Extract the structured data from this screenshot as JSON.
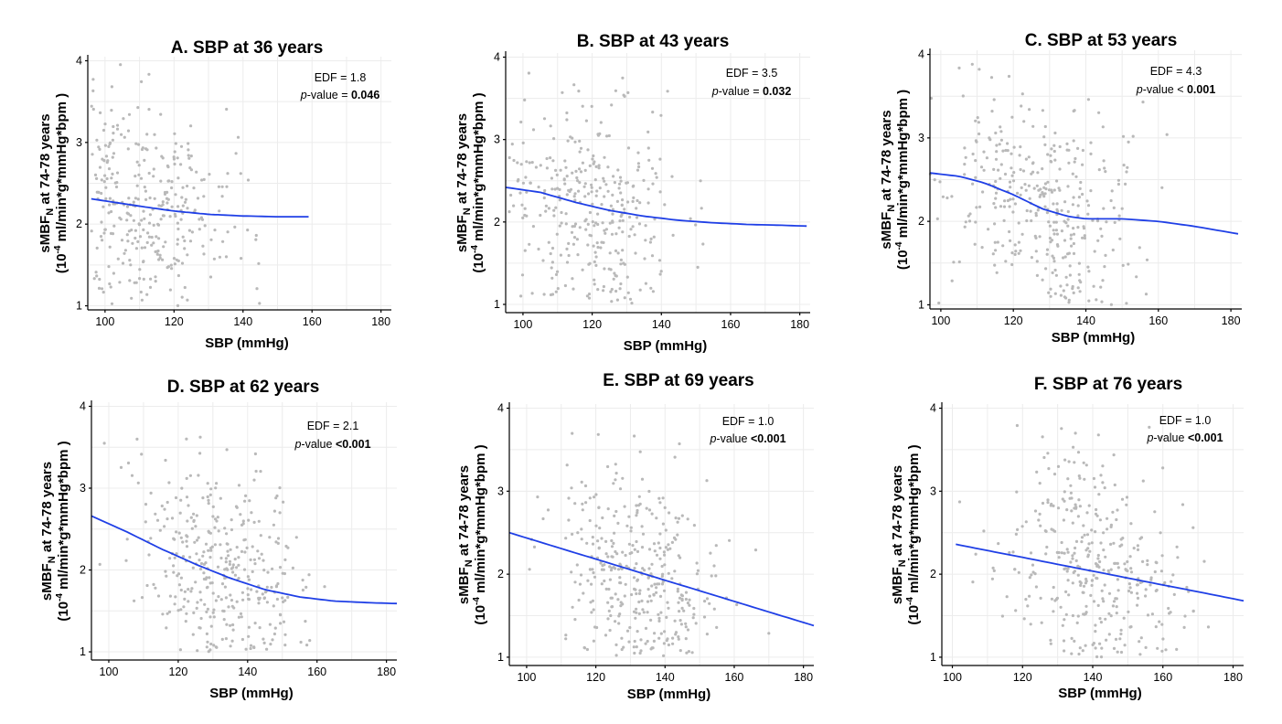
{
  "chart_data": [
    {
      "type": "scatter",
      "title": "A. SBP at 36 years",
      "xlabel": "SBP (mmHg)",
      "ylabel_line1": "sMBF",
      "ylabel_sub": "N",
      "ylabel_line1_rest": " at 74-78 years",
      "ylabel_line2_pre": "(10",
      "ylabel_line2_sup": "-4",
      "ylabel_line2_post": " ml/min*g*mmHg*bpm )",
      "xlim": [
        95,
        183
      ],
      "ylim": [
        0.95,
        4.05
      ],
      "xticks": [
        "100",
        "120",
        "140",
        "160",
        "180"
      ],
      "yticks": [
        "1",
        "2",
        "3",
        "4"
      ],
      "x_range": [
        96,
        148
      ],
      "x_mode": 114,
      "y_mean": 2.05,
      "seed": 11,
      "n_points": 330,
      "edf_label": "EDF = 1.8",
      "p_label": "p",
      "p_rest": "-value = ",
      "p_value": "0.046",
      "smooth_x": [
        96,
        110,
        120,
        130,
        140,
        150,
        159
      ],
      "smooth_y": [
        2.31,
        2.22,
        2.16,
        2.12,
        2.1,
        2.09,
        2.09
      ]
    },
    {
      "type": "scatter",
      "title": "B. SBP at 43 years",
      "xlabel": "SBP (mmHg)",
      "ylabel_line1": "sMBF",
      "ylabel_sub": "N",
      "ylabel_line1_rest": " at 74-78 years",
      "ylabel_line2_pre": "(10",
      "ylabel_line2_sup": "-4",
      "ylabel_line2_post": " ml/min*g*mmHg*bpm )",
      "xlim": [
        95,
        183
      ],
      "ylim": [
        0.9,
        4.05
      ],
      "xticks": [
        "100",
        "120",
        "140",
        "160",
        "180"
      ],
      "yticks": [
        "1",
        "2",
        "3",
        "4"
      ],
      "x_range": [
        96,
        168
      ],
      "x_mode": 120,
      "y_mean": 2.05,
      "seed": 23,
      "n_points": 340,
      "edf_label": "EDF = 3.5",
      "p_label": "p",
      "p_rest": "-value = ",
      "p_value": "0.032",
      "smooth_x": [
        95,
        105,
        115,
        125,
        135,
        145,
        155,
        165,
        175,
        182
      ],
      "smooth_y": [
        2.42,
        2.36,
        2.24,
        2.14,
        2.07,
        2.02,
        1.99,
        1.97,
        1.96,
        1.95
      ]
    },
    {
      "type": "scatter",
      "title": "C. SBP at 53 years",
      "xlabel": "SBP (mmHg)",
      "ylabel_line1": "sMBF",
      "ylabel_sub": "N",
      "ylabel_line1_rest": " at 74-78 years",
      "ylabel_line2_pre": "(10",
      "ylabel_line2_sup": "-4",
      "ylabel_line2_post": " ml/min*g*mmHg*bpm )",
      "xlim": [
        97,
        183
      ],
      "ylim": [
        0.95,
        4.05
      ],
      "xticks": [
        "100",
        "120",
        "140",
        "160",
        "180"
      ],
      "yticks": [
        "1",
        "2",
        "3",
        "4"
      ],
      "x_range": [
        97,
        178
      ],
      "x_mode": 128,
      "y_mean": 2.05,
      "seed": 37,
      "n_points": 360,
      "edf_label": "EDF = 4.3",
      "p_label": "p",
      "p_rest": "-value < ",
      "p_value": "0.001",
      "smooth_x": [
        97,
        105,
        112,
        120,
        128,
        135,
        140,
        150,
        160,
        170,
        182
      ],
      "smooth_y": [
        2.58,
        2.54,
        2.46,
        2.32,
        2.15,
        2.06,
        2.03,
        2.03,
        2.0,
        1.94,
        1.85
      ]
    },
    {
      "type": "scatter",
      "title": "D. SBP at 62 years",
      "xlabel": "SBP (mmHg)",
      "ylabel_line1": "sMBF",
      "ylabel_sub": "N",
      "ylabel_line1_rest": " at 74-78 years",
      "ylabel_line2_pre": "(10",
      "ylabel_line2_sup": "-4",
      "ylabel_line2_post": " ml/min*g*mmHg*bpm )",
      "xlim": [
        95,
        183
      ],
      "ylim": [
        0.9,
        4.05
      ],
      "xticks": [
        "100",
        "120",
        "140",
        "160",
        "180"
      ],
      "yticks": [
        "1",
        "2",
        "3",
        "4"
      ],
      "x_range": [
        96,
        182
      ],
      "x_mode": 132,
      "y_mean": 2.0,
      "seed": 41,
      "n_points": 360,
      "edf_label": "EDF = 2.1",
      "p_label": "p",
      "p_rest": "-value ",
      "p_value": "<0.001",
      "smooth_x": [
        95,
        105,
        115,
        125,
        135,
        145,
        155,
        165,
        175,
        183
      ],
      "smooth_y": [
        2.66,
        2.47,
        2.26,
        2.07,
        1.9,
        1.76,
        1.67,
        1.62,
        1.6,
        1.59
      ]
    },
    {
      "type": "scatter",
      "title": "E. SBP at 69 years",
      "xlabel": "SBP (mmHg)",
      "ylabel_line1": "sMBF",
      "ylabel_sub": "N",
      "ylabel_line1_rest": " at 74-78 years",
      "ylabel_line2_pre": "(10",
      "ylabel_line2_sup": "-4",
      "ylabel_line2_post": " ml/min*g*mmHg*bpm )",
      "xlim": [
        95,
        183
      ],
      "ylim": [
        0.9,
        4.05
      ],
      "xticks": [
        "100",
        "120",
        "140",
        "160",
        "180"
      ],
      "yticks": [
        "1",
        "2",
        "3",
        "4"
      ],
      "x_range": [
        100,
        182
      ],
      "x_mode": 132,
      "y_mean": 2.0,
      "seed": 53,
      "n_points": 360,
      "edf_label": "EDF = 1.0",
      "p_label": "p",
      "p_rest": "-value  ",
      "p_value": "<0.001",
      "smooth_x": [
        95,
        183
      ],
      "smooth_y": [
        2.5,
        1.38
      ]
    },
    {
      "type": "scatter",
      "title": "F. SBP at 76 years",
      "xlabel": "SBP (mmHg)",
      "ylabel_line1": "sMBF",
      "ylabel_sub": "N",
      "ylabel_line1_rest": " at 74-78 years",
      "ylabel_line2_pre": "(10",
      "ylabel_line2_sup": "-4",
      "ylabel_line2_post": " ml/min*g*mmHg*bpm )",
      "xlim": [
        97,
        183
      ],
      "ylim": [
        0.9,
        4.05
      ],
      "xticks": [
        "100",
        "120",
        "140",
        "160",
        "180"
      ],
      "yticks": [
        "1",
        "2",
        "3",
        "4"
      ],
      "x_range": [
        101,
        182
      ],
      "x_mode": 140,
      "y_mean": 2.05,
      "seed": 67,
      "n_points": 360,
      "edf_label": "EDF = 1.0",
      "p_label": "p",
      "p_rest": "-value  ",
      "p_value": "<0.001",
      "smooth_x": [
        101,
        183
      ],
      "smooth_y": [
        2.36,
        1.68
      ]
    }
  ]
}
